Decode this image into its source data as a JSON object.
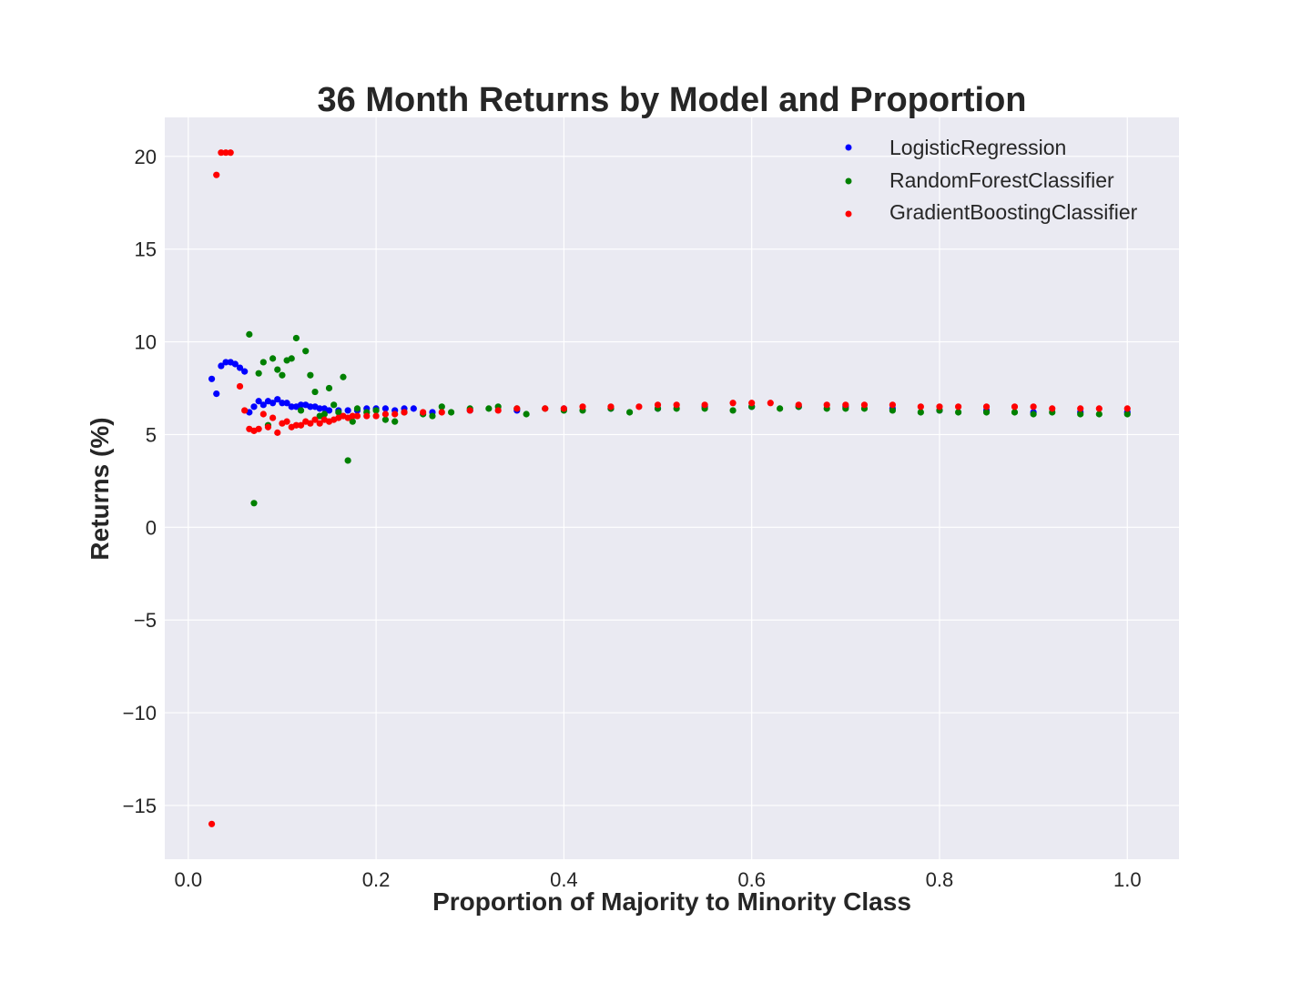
{
  "chart_data": {
    "type": "scatter",
    "title": "36 Month Returns by Model and Proportion",
    "xlabel": "Proportion of Majority to Minority Class",
    "ylabel": "Returns (%)",
    "xlim": [
      -0.025,
      1.055
    ],
    "ylim": [
      -17.9,
      22.1
    ],
    "xticks": [
      0.0,
      0.2,
      0.4,
      0.6,
      0.8,
      1.0
    ],
    "xtick_labels": [
      "0.0",
      "0.2",
      "0.4",
      "0.6",
      "0.8",
      "1.0"
    ],
    "yticks": [
      -15,
      -10,
      -5,
      0,
      5,
      10,
      15,
      20
    ],
    "ytick_labels": [
      "−15",
      "−10",
      "−5",
      "0",
      "5",
      "10",
      "15",
      "20"
    ],
    "grid": true,
    "legend_position": "top-right",
    "background_color": "#eaeaf2",
    "series": [
      {
        "name": "LogisticRegression",
        "color": "#0000ff",
        "x": [
          0.025,
          0.03,
          0.035,
          0.04,
          0.045,
          0.05,
          0.055,
          0.06,
          0.065,
          0.07,
          0.075,
          0.08,
          0.085,
          0.09,
          0.095,
          0.1,
          0.105,
          0.11,
          0.115,
          0.12,
          0.125,
          0.13,
          0.135,
          0.14,
          0.145,
          0.15,
          0.16,
          0.17,
          0.18,
          0.19,
          0.2,
          0.21,
          0.22,
          0.23,
          0.24,
          0.26,
          0.3,
          0.35,
          0.4,
          0.45,
          0.5,
          0.55,
          0.6,
          0.65,
          0.7,
          0.75,
          0.8,
          0.85,
          0.9,
          0.95,
          1.0
        ],
        "y": [
          8.0,
          7.2,
          8.7,
          8.9,
          8.9,
          8.8,
          8.6,
          8.4,
          6.2,
          6.5,
          6.8,
          6.6,
          6.8,
          6.7,
          6.9,
          6.7,
          6.7,
          6.5,
          6.5,
          6.6,
          6.6,
          6.5,
          6.5,
          6.4,
          6.4,
          6.3,
          6.3,
          6.3,
          6.3,
          6.4,
          6.4,
          6.4,
          6.3,
          6.4,
          6.4,
          6.2,
          6.3,
          6.3,
          6.4,
          6.4,
          6.4,
          6.5,
          6.5,
          6.5,
          6.5,
          6.4,
          6.3,
          6.3,
          6.2,
          6.2,
          6.2
        ]
      },
      {
        "name": "RandomForestClassifier",
        "color": "#008000",
        "x": [
          0.065,
          0.07,
          0.075,
          0.08,
          0.085,
          0.09,
          0.095,
          0.1,
          0.105,
          0.11,
          0.115,
          0.12,
          0.125,
          0.13,
          0.135,
          0.14,
          0.145,
          0.15,
          0.155,
          0.16,
          0.165,
          0.17,
          0.175,
          0.18,
          0.19,
          0.2,
          0.21,
          0.22,
          0.23,
          0.25,
          0.26,
          0.27,
          0.28,
          0.3,
          0.32,
          0.33,
          0.35,
          0.36,
          0.38,
          0.4,
          0.42,
          0.45,
          0.47,
          0.5,
          0.52,
          0.55,
          0.58,
          0.6,
          0.63,
          0.65,
          0.68,
          0.7,
          0.72,
          0.75,
          0.78,
          0.8,
          0.82,
          0.85,
          0.88,
          0.9,
          0.92,
          0.95,
          0.97,
          1.0
        ],
        "y": [
          10.4,
          1.3,
          8.3,
          8.9,
          5.5,
          9.1,
          8.5,
          8.2,
          9.0,
          9.1,
          10.2,
          6.3,
          9.5,
          8.2,
          7.3,
          6.0,
          6.1,
          7.5,
          6.6,
          6.2,
          8.1,
          3.6,
          5.7,
          6.4,
          6.2,
          6.3,
          5.8,
          5.7,
          6.2,
          6.1,
          6.0,
          6.5,
          6.2,
          6.4,
          6.4,
          6.5,
          6.4,
          6.1,
          6.4,
          6.3,
          6.3,
          6.4,
          6.2,
          6.4,
          6.4,
          6.4,
          6.3,
          6.5,
          6.4,
          6.5,
          6.4,
          6.4,
          6.4,
          6.3,
          6.2,
          6.3,
          6.2,
          6.2,
          6.2,
          6.1,
          6.2,
          6.1,
          6.1,
          6.1
        ]
      },
      {
        "name": "GradientBoostingClassifier",
        "color": "#ff0000",
        "x": [
          0.025,
          0.03,
          0.035,
          0.04,
          0.045,
          0.055,
          0.06,
          0.065,
          0.07,
          0.075,
          0.08,
          0.085,
          0.09,
          0.095,
          0.1,
          0.105,
          0.11,
          0.115,
          0.12,
          0.125,
          0.13,
          0.135,
          0.14,
          0.145,
          0.15,
          0.155,
          0.16,
          0.165,
          0.17,
          0.175,
          0.18,
          0.19,
          0.2,
          0.21,
          0.22,
          0.23,
          0.25,
          0.27,
          0.3,
          0.33,
          0.35,
          0.38,
          0.4,
          0.42,
          0.45,
          0.48,
          0.5,
          0.52,
          0.55,
          0.58,
          0.6,
          0.62,
          0.65,
          0.68,
          0.7,
          0.72,
          0.75,
          0.78,
          0.8,
          0.82,
          0.85,
          0.88,
          0.9,
          0.92,
          0.95,
          0.97,
          1.0
        ],
        "y": [
          -16.0,
          19.0,
          20.2,
          20.2,
          20.2,
          7.6,
          6.3,
          5.3,
          5.2,
          5.3,
          6.1,
          5.4,
          5.9,
          5.1,
          5.6,
          5.7,
          5.4,
          5.5,
          5.5,
          5.7,
          5.6,
          5.8,
          5.6,
          5.8,
          5.7,
          5.8,
          5.9,
          6.0,
          5.9,
          6.0,
          6.0,
          6.0,
          6.0,
          6.1,
          6.1,
          6.2,
          6.2,
          6.2,
          6.3,
          6.3,
          6.4,
          6.4,
          6.4,
          6.5,
          6.5,
          6.5,
          6.6,
          6.6,
          6.6,
          6.7,
          6.7,
          6.7,
          6.6,
          6.6,
          6.6,
          6.6,
          6.6,
          6.5,
          6.5,
          6.5,
          6.5,
          6.5,
          6.5,
          6.4,
          6.4,
          6.4,
          6.4
        ]
      }
    ]
  }
}
